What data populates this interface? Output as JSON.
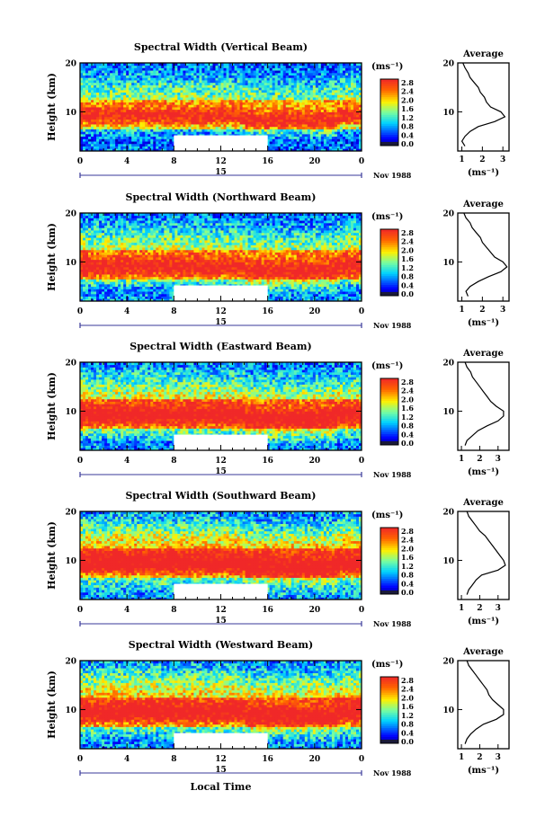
{
  "figure": {
    "xlabel": "Local Time",
    "date_label": "Nov 1988",
    "date_marker": "15",
    "colorbar_unit": "(ms⁻¹)",
    "colorbar_ticks": [
      "2.8",
      "2.4",
      "2.0",
      "1.6",
      "1.2",
      "0.8",
      "0.4",
      "0.0"
    ],
    "average_title": "Average",
    "average_xlabel": "(ms⁻¹)"
  },
  "chart_data": [
    {
      "type": "heatmap",
      "title": "Spectral Width (Vertical Beam)",
      "ylabel": "Height (km)",
      "x_ticks": [
        "0",
        "4",
        "8",
        "12",
        "16",
        "20",
        "0"
      ],
      "y_ticks": [
        "20",
        "10"
      ],
      "xlim": [
        0,
        24
      ],
      "ylim": [
        2,
        20
      ],
      "gap_hours": [
        8,
        16
      ],
      "gap_top_km": 5.2,
      "colorbar_range": [
        0,
        3.0
      ],
      "average": {
        "x_ticks": [
          "1",
          "2",
          "3"
        ],
        "xlim": [
          0.8,
          3.3
        ],
        "height": [
          3,
          4,
          5,
          6,
          7,
          8,
          9,
          10,
          11,
          12,
          13,
          14,
          15,
          16,
          17,
          18,
          19,
          20
        ],
        "width": [
          1.15,
          1.0,
          1.15,
          1.4,
          1.8,
          2.6,
          3.1,
          2.9,
          2.4,
          2.2,
          2.1,
          1.9,
          1.8,
          1.6,
          1.4,
          1.3,
          1.15,
          1.05
        ]
      }
    },
    {
      "type": "heatmap",
      "title": "Spectral Width (Northward Beam)",
      "ylabel": "Height (km)",
      "x_ticks": [
        "0",
        "4",
        "8",
        "12",
        "16",
        "20",
        "0"
      ],
      "y_ticks": [
        "20",
        "10"
      ],
      "xlim": [
        0,
        24
      ],
      "ylim": [
        2,
        20
      ],
      "gap_hours": [
        8,
        16
      ],
      "gap_top_km": 5.2,
      "colorbar_range": [
        0,
        3.0
      ],
      "average": {
        "x_ticks": [
          "1",
          "2",
          "3"
        ],
        "xlim": [
          0.8,
          3.3
        ],
        "height": [
          3,
          4,
          5,
          6,
          7,
          8,
          9,
          10,
          11,
          12,
          13,
          14,
          15,
          16,
          17,
          18,
          19,
          20
        ],
        "width": [
          1.3,
          1.2,
          1.4,
          1.8,
          2.3,
          2.9,
          3.2,
          3.0,
          2.6,
          2.4,
          2.2,
          2.0,
          1.9,
          1.7,
          1.5,
          1.4,
          1.2,
          1.1
        ]
      }
    },
    {
      "type": "heatmap",
      "title": "Spectral Width (Eastward Beam)",
      "ylabel": "Height (km)",
      "x_ticks": [
        "0",
        "4",
        "8",
        "12",
        "16",
        "20",
        "0"
      ],
      "y_ticks": [
        "20",
        "10"
      ],
      "xlim": [
        0,
        24
      ],
      "ylim": [
        2,
        20
      ],
      "gap_hours": [
        8,
        16
      ],
      "gap_top_km": 5.2,
      "colorbar_range": [
        0,
        3.0
      ],
      "average": {
        "x_ticks": [
          "1",
          "2",
          "3"
        ],
        "xlim": [
          0.8,
          3.6
        ],
        "height": [
          3,
          4,
          5,
          6,
          7,
          8,
          9,
          10,
          11,
          12,
          13,
          14,
          15,
          16,
          17,
          18,
          19,
          20
        ],
        "width": [
          1.2,
          1.3,
          1.6,
          1.9,
          2.4,
          3.0,
          3.3,
          3.3,
          2.9,
          2.6,
          2.4,
          2.2,
          2.0,
          1.8,
          1.6,
          1.5,
          1.3,
          1.2
        ]
      }
    },
    {
      "type": "heatmap",
      "title": "Spectral Width (Southward Beam)",
      "ylabel": "Height (km)",
      "x_ticks": [
        "0",
        "4",
        "8",
        "12",
        "16",
        "20",
        "0"
      ],
      "y_ticks": [
        "20",
        "10"
      ],
      "xlim": [
        0,
        24
      ],
      "ylim": [
        2,
        20
      ],
      "gap_hours": [
        8,
        16
      ],
      "gap_top_km": 5.2,
      "colorbar_range": [
        0,
        3.0
      ],
      "average": {
        "x_ticks": [
          "1",
          "2",
          "3"
        ],
        "xlim": [
          0.8,
          3.6
        ],
        "height": [
          3,
          4,
          5,
          6,
          7,
          8,
          9,
          10,
          11,
          12,
          13,
          14,
          15,
          16,
          17,
          18,
          19,
          20
        ],
        "width": [
          1.3,
          1.4,
          1.6,
          1.8,
          2.1,
          3.0,
          3.4,
          3.3,
          3.1,
          2.9,
          2.7,
          2.5,
          2.3,
          2.0,
          1.8,
          1.6,
          1.4,
          1.3
        ]
      }
    },
    {
      "type": "heatmap",
      "title": "Spectral Width (Westward Beam)",
      "ylabel": "Height (km)",
      "x_ticks": [
        "0",
        "4",
        "8",
        "12",
        "16",
        "20",
        "0"
      ],
      "y_ticks": [
        "20",
        "10"
      ],
      "xlim": [
        0,
        24
      ],
      "ylim": [
        2,
        20
      ],
      "gap_hours": [
        8,
        16
      ],
      "gap_top_km": 5.2,
      "colorbar_range": [
        0,
        3.0
      ],
      "average": {
        "x_ticks": [
          "1",
          "2",
          "3"
        ],
        "xlim": [
          0.8,
          3.6
        ],
        "height": [
          3,
          4,
          5,
          6,
          7,
          8,
          9,
          10,
          11,
          12,
          13,
          14,
          15,
          16,
          17,
          18,
          19,
          20
        ],
        "width": [
          1.2,
          1.3,
          1.5,
          1.8,
          2.2,
          2.9,
          3.3,
          3.3,
          3.0,
          2.7,
          2.5,
          2.4,
          2.2,
          2.0,
          1.8,
          1.6,
          1.4,
          1.3
        ]
      }
    }
  ]
}
